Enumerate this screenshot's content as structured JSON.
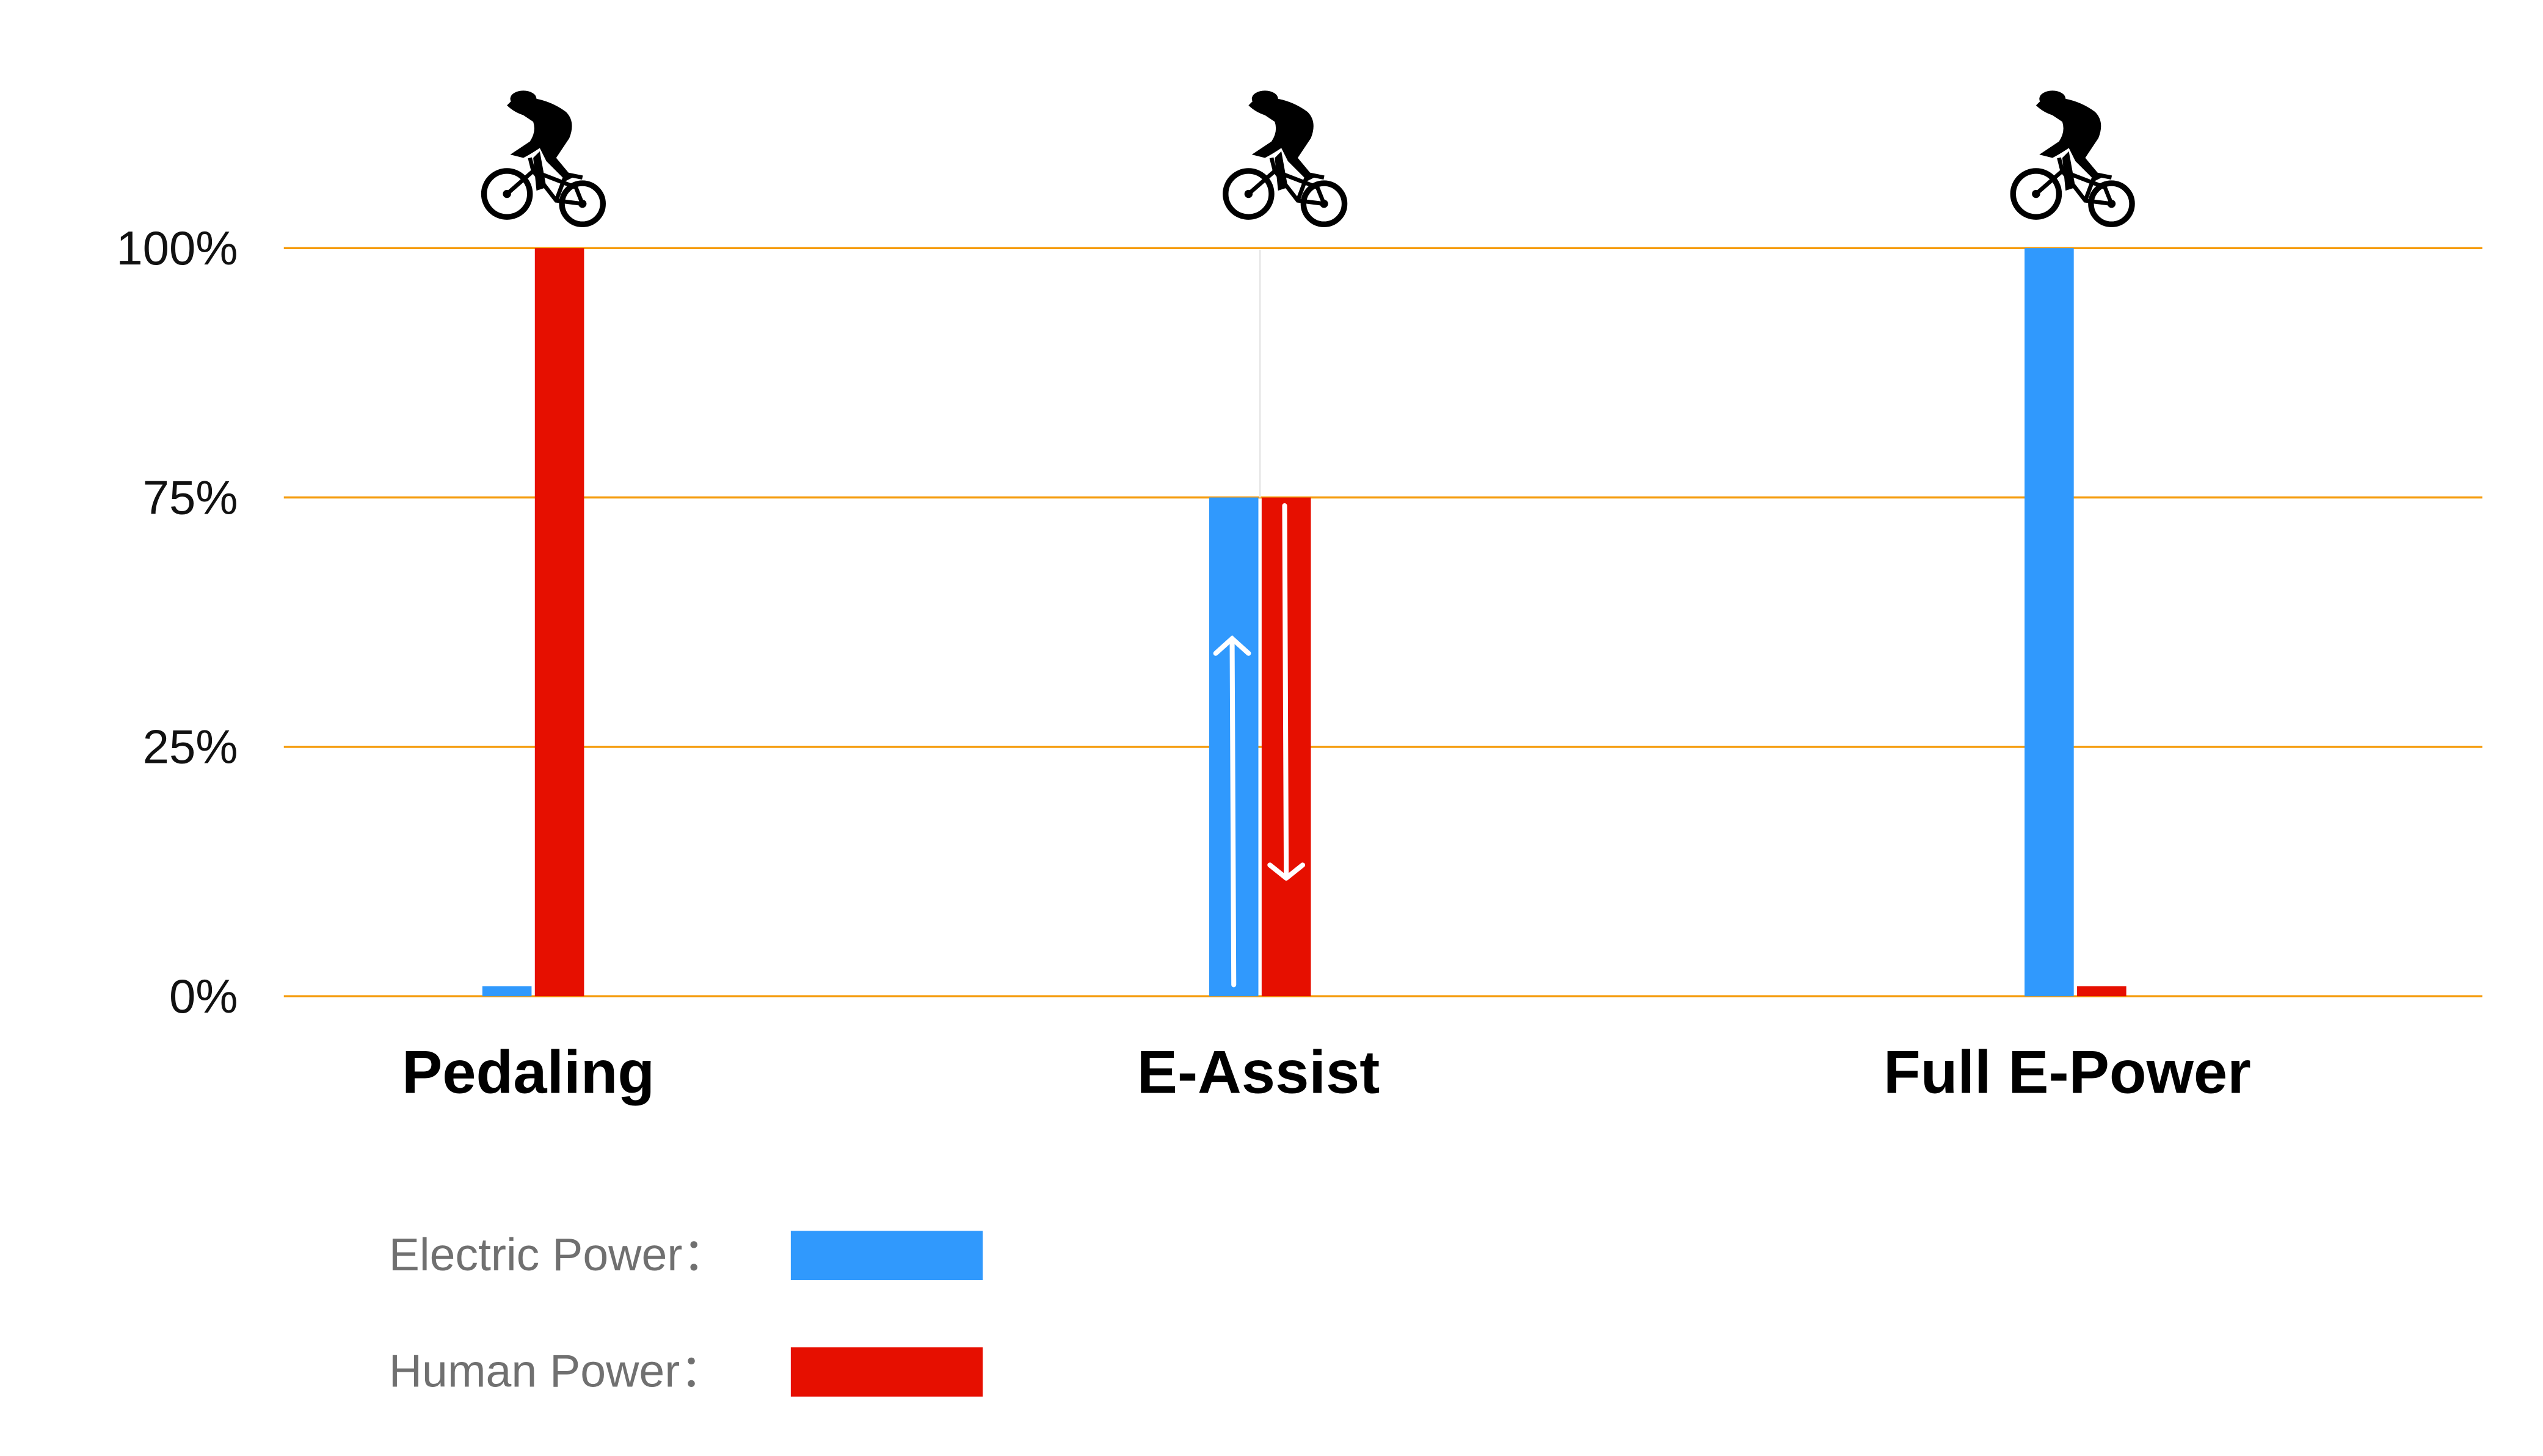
{
  "chart_data": {
    "type": "bar",
    "title": "",
    "xlabel": "",
    "ylabel": "",
    "categories": [
      "Pedaling",
      "E-Assist",
      "Full E-Power"
    ],
    "y_ticks": [
      0,
      25,
      75,
      100
    ],
    "y_tick_labels": [
      "0%",
      "25%",
      "75%",
      "100%"
    ],
    "ylim": [
      0,
      100
    ],
    "grid": true,
    "series": [
      {
        "name": "Electric Power",
        "legend_label": "Electric Power：",
        "color": "#3099FD",
        "values": [
          1,
          75,
          100
        ]
      },
      {
        "name": "Human Power",
        "legend_label": "Human Power：",
        "color": "#E60F00",
        "values": [
          100,
          75,
          1
        ]
      }
    ],
    "annotations": [
      {
        "category": "E-Assist",
        "series": "Electric Power",
        "arrow": "up"
      },
      {
        "category": "E-Assist",
        "series": "Human Power",
        "arrow": "down"
      }
    ],
    "category_icons": [
      "cyclist-icon",
      "cyclist-icon",
      "cyclist-icon"
    ],
    "grid_color": "#F59B0B",
    "legend_position": "bottom-left"
  }
}
